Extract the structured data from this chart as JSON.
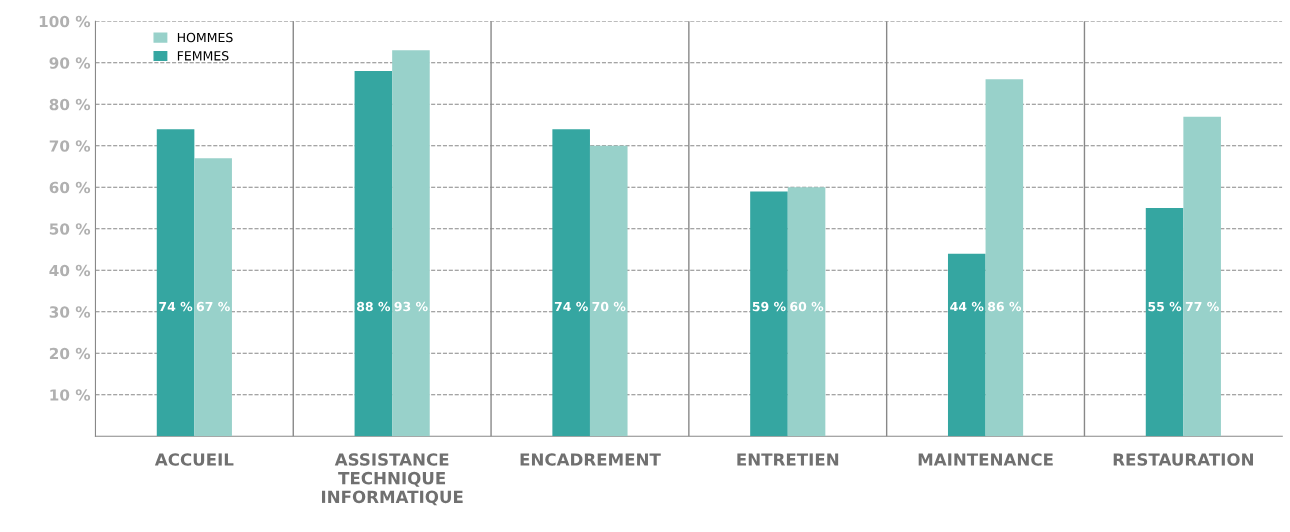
{
  "chart_data": {
    "type": "bar",
    "categories": [
      "ACCUEIL",
      "ASSISTANCE\nTECHNIQUE\nINFORMATIQUE",
      "ENCADREMENT",
      "ENTRETIEN",
      "MAINTENANCE",
      "RESTAURATION"
    ],
    "series": [
      {
        "name": "FEMMES",
        "color": "#35a6a1",
        "values": [
          74,
          88,
          74,
          59,
          44,
          55
        ],
        "value_labels": [
          "74 %",
          "88 %",
          "74 %",
          "59 %",
          "44 %",
          "55 %"
        ]
      },
      {
        "name": "HOMMES",
        "color": "#98d1ca",
        "values": [
          67,
          93,
          70,
          60,
          86,
          77
        ],
        "value_labels": [
          "67 %",
          "93 %",
          "70 %",
          "60 %",
          "86 %",
          "77 %"
        ]
      }
    ],
    "ylim": [
      0,
      100
    ],
    "yticks": [
      {
        "value": 10,
        "label": "10 %"
      },
      {
        "value": 20,
        "label": "20 %"
      },
      {
        "value": 30,
        "label": "30 %"
      },
      {
        "value": 40,
        "label": "40 %"
      },
      {
        "value": 50,
        "label": "50 %"
      },
      {
        "value": 60,
        "label": "60 %"
      },
      {
        "value": 70,
        "label": "70 %"
      },
      {
        "value": 80,
        "label": "80 %"
      },
      {
        "value": 90,
        "label": "90 %"
      },
      {
        "value": 100,
        "label": "100 %"
      }
    ],
    "grid": "y",
    "legend": "top left"
  }
}
